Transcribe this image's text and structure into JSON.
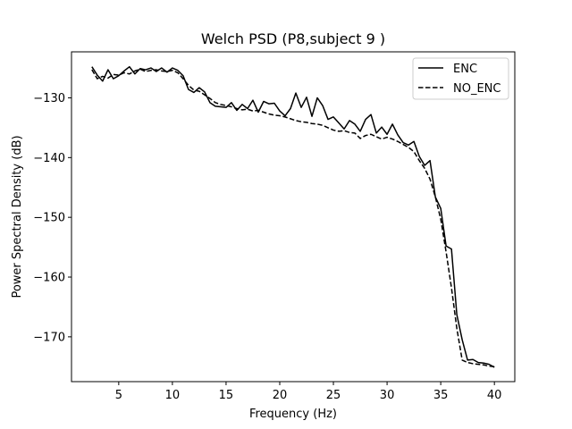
{
  "chart_data": {
    "type": "line",
    "title": "Welch PSD (P8,subject 9 )",
    "xlabel": "Frequency (Hz)",
    "ylabel": "Power Spectral Density (dB)",
    "xlim": [
      0.6,
      41.9
    ],
    "ylim": [
      -177.5,
      -122.3
    ],
    "xticks": [
      5,
      10,
      15,
      20,
      25,
      30,
      35,
      40
    ],
    "xtick_labels": [
      "5",
      "10",
      "15",
      "20",
      "25",
      "30",
      "35",
      "40"
    ],
    "yticks": [
      -130,
      -140,
      -150,
      -160,
      -170
    ],
    "ytick_labels": [
      "−130",
      "−140",
      "−150",
      "−160",
      "−170"
    ],
    "grid": false,
    "legend_position": "upper right",
    "series": [
      {
        "name": "ENC",
        "style": "solid",
        "color": "#000000",
        "x": [
          2.5,
          3.0,
          3.5,
          4.0,
          4.5,
          5.0,
          5.5,
          6.0,
          6.5,
          7.0,
          7.5,
          8.0,
          8.5,
          9.0,
          9.5,
          10.0,
          10.5,
          11.0,
          11.5,
          12.0,
          12.5,
          13.0,
          13.5,
          14.0,
          14.5,
          15.0,
          15.5,
          16.0,
          16.5,
          17.0,
          17.5,
          18.0,
          18.5,
          19.0,
          19.5,
          20.0,
          20.5,
          21.0,
          21.5,
          22.0,
          22.5,
          23.0,
          23.5,
          24.0,
          24.5,
          25.0,
          25.5,
          26.0,
          26.5,
          27.0,
          27.5,
          28.0,
          28.5,
          29.0,
          29.5,
          30.0,
          30.5,
          31.0,
          31.5,
          32.0,
          32.5,
          33.0,
          33.5,
          34.0,
          34.5,
          35.0,
          35.5,
          36.0,
          36.5,
          37.0,
          37.5,
          38.0,
          38.5,
          39.0,
          39.5,
          40.0
        ],
        "y": [
          -124.8,
          -126.2,
          -127.2,
          -125.3,
          -126.8,
          -126.3,
          -125.5,
          -124.8,
          -126.0,
          -125.1,
          -125.3,
          -125.0,
          -125.6,
          -125.0,
          -125.7,
          -125.0,
          -125.4,
          -126.3,
          -128.6,
          -129.1,
          -128.3,
          -129.0,
          -130.8,
          -131.4,
          -131.5,
          -131.6,
          -130.8,
          -132.1,
          -131.1,
          -131.8,
          -130.4,
          -132.4,
          -130.6,
          -131.0,
          -130.9,
          -132.2,
          -133.0,
          -131.8,
          -129.2,
          -131.6,
          -129.9,
          -133.1,
          -130.0,
          -131.3,
          -133.6,
          -133.2,
          -134.2,
          -135.2,
          -133.8,
          -134.4,
          -135.6,
          -133.6,
          -132.8,
          -135.9,
          -134.9,
          -136.1,
          -134.4,
          -136.2,
          -137.5,
          -137.9,
          -137.3,
          -139.8,
          -141.3,
          -140.5,
          -146.6,
          -148.5,
          -154.8,
          -155.3,
          -166.3,
          -170.5,
          -173.9,
          -173.8,
          -174.3,
          -174.4,
          -174.6,
          -175.1
        ]
      },
      {
        "name": "NO_ENC",
        "style": "dashed",
        "color": "#000000",
        "x": [
          2.5,
          3.0,
          3.5,
          4.0,
          4.5,
          5.0,
          5.5,
          6.0,
          6.5,
          7.0,
          7.5,
          8.0,
          8.5,
          9.0,
          9.5,
          10.0,
          10.5,
          11.0,
          11.5,
          12.0,
          12.5,
          13.0,
          13.5,
          14.0,
          14.5,
          15.0,
          15.5,
          16.0,
          16.5,
          17.0,
          17.5,
          18.0,
          18.5,
          19.0,
          19.5,
          20.0,
          20.5,
          21.0,
          21.5,
          22.0,
          22.5,
          23.0,
          23.5,
          24.0,
          24.5,
          25.0,
          25.5,
          26.0,
          26.5,
          27.0,
          27.5,
          28.0,
          28.5,
          29.0,
          29.5,
          30.0,
          30.5,
          31.0,
          31.5,
          32.0,
          32.5,
          33.0,
          33.5,
          34.0,
          34.5,
          35.0,
          35.5,
          36.0,
          36.5,
          37.0,
          37.5,
          38.0,
          38.5,
          39.0,
          39.5,
          40.0
        ],
        "y": [
          -125.3,
          -126.8,
          -126.4,
          -126.7,
          -126.1,
          -126.2,
          -125.8,
          -126.0,
          -125.5,
          -125.2,
          -125.6,
          -125.4,
          -125.3,
          -125.5,
          -125.6,
          -125.4,
          -125.8,
          -126.8,
          -127.9,
          -128.7,
          -128.9,
          -129.5,
          -130.1,
          -130.8,
          -131.1,
          -131.3,
          -131.5,
          -131.8,
          -132.0,
          -131.9,
          -132.2,
          -132.1,
          -132.4,
          -132.7,
          -132.9,
          -133.0,
          -133.2,
          -133.5,
          -133.8,
          -134.0,
          -134.1,
          -134.3,
          -134.4,
          -134.6,
          -135.0,
          -135.4,
          -135.6,
          -135.5,
          -135.8,
          -135.9,
          -136.8,
          -136.3,
          -136.1,
          -136.5,
          -136.9,
          -136.6,
          -136.9,
          -137.3,
          -137.8,
          -138.3,
          -139.0,
          -140.5,
          -141.8,
          -143.6,
          -146.6,
          -150.3,
          -155.8,
          -161.8,
          -168.6,
          -173.9,
          -174.3,
          -174.5,
          -174.6,
          -174.7,
          -174.9,
          -175.0
        ]
      }
    ]
  }
}
